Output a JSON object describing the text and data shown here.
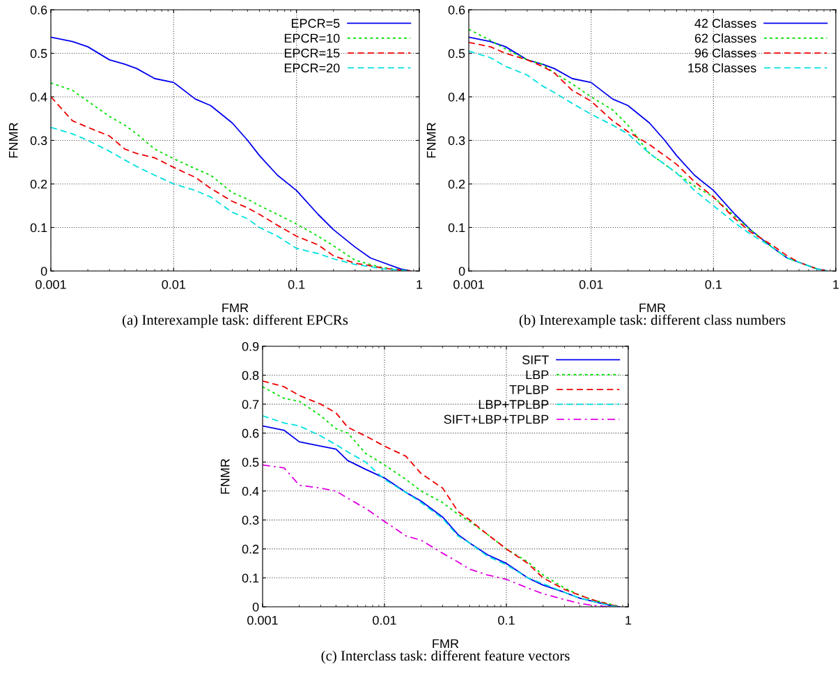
{
  "chart_data": [
    {
      "type": "line",
      "xlabel": "FMR",
      "ylabel": "FNMR",
      "log": "x",
      "xlim": [
        0.001,
        1
      ],
      "xticks": [
        0.001,
        0.01,
        0.1,
        1
      ],
      "ylim": [
        0,
        0.6
      ],
      "yticks": [
        0,
        0.1,
        0.2,
        0.3,
        0.4,
        0.5,
        0.6
      ],
      "grid": true,
      "legend": "top right",
      "annotations": [
        "(a) Interexample task: different EPCRs"
      ],
      "x": [
        0.001,
        0.0015,
        0.002,
        0.003,
        0.004,
        0.005,
        0.007,
        0.01,
        0.015,
        0.02,
        0.03,
        0.04,
        0.05,
        0.07,
        0.1,
        0.15,
        0.2,
        0.3,
        0.4,
        0.5,
        0.7,
        0.85
      ],
      "series": [
        {
          "name": "EPCR=5",
          "color": "#0000ee",
          "line_style": "solid",
          "values": [
            0.537,
            0.527,
            0.515,
            0.485,
            0.475,
            0.465,
            0.442,
            0.433,
            0.395,
            0.38,
            0.34,
            0.3,
            0.265,
            0.22,
            0.185,
            0.13,
            0.095,
            0.055,
            0.03,
            0.02,
            0.005,
            0
          ]
        },
        {
          "name": "EPCR=10",
          "color": "#00e000",
          "line_style": "dotted",
          "values": [
            0.432,
            0.415,
            0.39,
            0.355,
            0.335,
            0.315,
            0.28,
            0.258,
            0.235,
            0.22,
            0.18,
            0.165,
            0.15,
            0.13,
            0.108,
            0.08,
            0.058,
            0.025,
            0.015,
            0.008,
            0.003,
            0
          ]
        },
        {
          "name": "EPCR=15",
          "color": "#ee0000",
          "line_style": "dashed",
          "values": [
            0.4,
            0.345,
            0.33,
            0.31,
            0.28,
            0.27,
            0.26,
            0.238,
            0.215,
            0.19,
            0.16,
            0.145,
            0.13,
            0.105,
            0.08,
            0.06,
            0.035,
            0.018,
            0.012,
            0.007,
            0.002,
            0
          ]
        },
        {
          "name": "EPCR=20",
          "color": "#00e0e0",
          "line_style": "dashed",
          "values": [
            0.33,
            0.315,
            0.3,
            0.275,
            0.255,
            0.24,
            0.22,
            0.2,
            0.185,
            0.17,
            0.135,
            0.12,
            0.1,
            0.08,
            0.052,
            0.04,
            0.028,
            0.015,
            0.01,
            0.005,
            0.002,
            0
          ]
        }
      ]
    },
    {
      "type": "line",
      "xlabel": "FMR",
      "ylabel": "FNMR",
      "log": "x",
      "xlim": [
        0.001,
        1
      ],
      "xticks": [
        0.001,
        0.01,
        0.1,
        1
      ],
      "ylim": [
        0,
        0.6
      ],
      "yticks": [
        0,
        0.1,
        0.2,
        0.3,
        0.4,
        0.5,
        0.6
      ],
      "grid": true,
      "legend": "top right",
      "annotations": [
        "(b) Interexample task: different class numbers"
      ],
      "x": [
        0.001,
        0.0015,
        0.002,
        0.003,
        0.004,
        0.005,
        0.007,
        0.01,
        0.015,
        0.02,
        0.03,
        0.04,
        0.05,
        0.07,
        0.1,
        0.15,
        0.2,
        0.3,
        0.4,
        0.5,
        0.7,
        0.85
      ],
      "series": [
        {
          "name": "42 Classes",
          "color": "#0000ee",
          "line_style": "solid",
          "values": [
            0.537,
            0.527,
            0.515,
            0.485,
            0.475,
            0.465,
            0.442,
            0.433,
            0.395,
            0.38,
            0.34,
            0.3,
            0.265,
            0.22,
            0.185,
            0.13,
            0.095,
            0.055,
            0.03,
            0.02,
            0.005,
            0
          ]
        },
        {
          "name": "62 Classes",
          "color": "#00e000",
          "line_style": "dotted",
          "values": [
            0.555,
            0.53,
            0.51,
            0.485,
            0.475,
            0.455,
            0.43,
            0.4,
            0.37,
            0.335,
            0.27,
            0.245,
            0.225,
            0.195,
            0.17,
            0.125,
            0.095,
            0.055,
            0.03,
            0.02,
            0.005,
            0
          ]
        },
        {
          "name": "96 Classes",
          "color": "#ee0000",
          "line_style": "dashed",
          "values": [
            0.525,
            0.515,
            0.5,
            0.485,
            0.47,
            0.455,
            0.415,
            0.39,
            0.345,
            0.32,
            0.29,
            0.265,
            0.245,
            0.205,
            0.17,
            0.12,
            0.09,
            0.06,
            0.035,
            0.02,
            0.005,
            0
          ]
        },
        {
          "name": "158 Classes",
          "color": "#00e0e0",
          "line_style": "dashed",
          "values": [
            0.505,
            0.49,
            0.47,
            0.45,
            0.425,
            0.41,
            0.385,
            0.36,
            0.335,
            0.315,
            0.27,
            0.245,
            0.225,
            0.185,
            0.15,
            0.11,
            0.085,
            0.055,
            0.03,
            0.02,
            0.005,
            0
          ]
        }
      ]
    },
    {
      "type": "line",
      "xlabel": "FMR",
      "ylabel": "FNMR",
      "log": "x",
      "xlim": [
        0.001,
        1
      ],
      "xticks": [
        0.001,
        0.01,
        0.1,
        1
      ],
      "ylim": [
        0,
        0.9
      ],
      "yticks": [
        0,
        0.1,
        0.2,
        0.3,
        0.4,
        0.5,
        0.6,
        0.7,
        0.8,
        0.9
      ],
      "grid": true,
      "legend": "top right",
      "annotations": [
        "(c) Interclass task: different feature vectors"
      ],
      "x": [
        0.001,
        0.0015,
        0.002,
        0.003,
        0.004,
        0.005,
        0.007,
        0.01,
        0.015,
        0.02,
        0.03,
        0.04,
        0.05,
        0.07,
        0.1,
        0.15,
        0.2,
        0.3,
        0.4,
        0.5,
        0.7,
        0.85
      ],
      "series": [
        {
          "name": "SIFT",
          "color": "#0000ee",
          "line_style": "solid",
          "values": [
            0.625,
            0.61,
            0.57,
            0.555,
            0.545,
            0.505,
            0.475,
            0.445,
            0.395,
            0.365,
            0.31,
            0.25,
            0.22,
            0.18,
            0.15,
            0.1,
            0.075,
            0.05,
            0.03,
            0.02,
            0.005,
            0
          ]
        },
        {
          "name": "LBP",
          "color": "#00e000",
          "line_style": "dotted",
          "values": [
            0.76,
            0.72,
            0.71,
            0.66,
            0.615,
            0.6,
            0.53,
            0.49,
            0.44,
            0.4,
            0.36,
            0.32,
            0.295,
            0.25,
            0.2,
            0.155,
            0.11,
            0.065,
            0.04,
            0.025,
            0.01,
            0
          ]
        },
        {
          "name": "TPLBP",
          "color": "#ee0000",
          "line_style": "dashed",
          "values": [
            0.78,
            0.76,
            0.73,
            0.7,
            0.67,
            0.62,
            0.59,
            0.555,
            0.52,
            0.46,
            0.41,
            0.33,
            0.3,
            0.25,
            0.2,
            0.15,
            0.1,
            0.06,
            0.04,
            0.025,
            0.008,
            0
          ]
        },
        {
          "name": "LBP+TPLBP",
          "color": "#00e0e0",
          "line_style": "dashed",
          "values": [
            0.66,
            0.635,
            0.625,
            0.59,
            0.56,
            0.535,
            0.5,
            0.44,
            0.395,
            0.36,
            0.305,
            0.245,
            0.22,
            0.175,
            0.145,
            0.1,
            0.08,
            0.05,
            0.03,
            0.02,
            0.005,
            0
          ]
        },
        {
          "name": "SIFT+LBP+TPLBP",
          "color": "#e000e0",
          "line_style": "dashdot",
          "values": [
            0.49,
            0.48,
            0.42,
            0.41,
            0.4,
            0.375,
            0.34,
            0.295,
            0.245,
            0.23,
            0.185,
            0.155,
            0.13,
            0.11,
            0.095,
            0.065,
            0.045,
            0.025,
            0.012,
            0.005,
            0,
            null
          ]
        }
      ]
    }
  ]
}
